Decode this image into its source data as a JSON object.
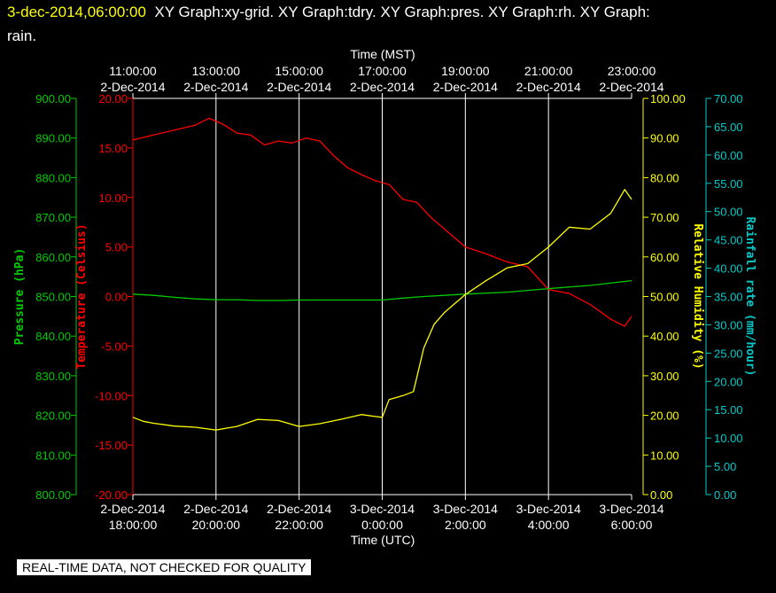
{
  "header": {
    "timestamp": "3-dec-2014,06:00:00",
    "graphs_line1": "XY Graph:xy-grid.  XY Graph:tdry.  XY Graph:pres.  XY Graph:rh.  XY Graph:",
    "graphs_line2": "rain."
  },
  "footer": {
    "quality_note": "REAL-TIME DATA, NOT CHECKED FOR QUALITY"
  },
  "colors": {
    "background": "#000000",
    "grid": "#ffffff",
    "temperature": "#ff0000",
    "pressure": "#00cc00",
    "humidity": "#ffff00",
    "rainfall": "#00cccc",
    "label": "#ffffff"
  },
  "chart_data": {
    "type": "line",
    "top_axis": {
      "title": "Time (MST)",
      "ticks": [
        {
          "time": "11:00:00",
          "date": "2-Dec-2014"
        },
        {
          "time": "13:00:00",
          "date": "2-Dec-2014"
        },
        {
          "time": "15:00:00",
          "date": "2-Dec-2014"
        },
        {
          "time": "17:00:00",
          "date": "2-Dec-2014"
        },
        {
          "time": "19:00:00",
          "date": "2-Dec-2014"
        },
        {
          "time": "21:00:00",
          "date": "2-Dec-2014"
        },
        {
          "time": "23:00:00",
          "date": "2-Dec-2014"
        }
      ]
    },
    "bottom_axis": {
      "title": "Time (UTC)",
      "ticks": [
        {
          "date": "2-Dec-2014",
          "time": "18:00:00"
        },
        {
          "date": "2-Dec-2014",
          "time": "20:00:00"
        },
        {
          "date": "2-Dec-2014",
          "time": "22:00:00"
        },
        {
          "date": "3-Dec-2014",
          "time": "0:00:00"
        },
        {
          "date": "3-Dec-2014",
          "time": "2:00:00"
        },
        {
          "date": "3-Dec-2014",
          "time": "4:00:00"
        },
        {
          "date": "3-Dec-2014",
          "time": "6:00:00"
        }
      ]
    },
    "axes": {
      "pressure": {
        "label": "Pressure (hPa)",
        "min": 800,
        "max": 900,
        "ticks": [
          "900.00",
          "890.00",
          "880.00",
          "870.00",
          "860.00",
          "850.00",
          "840.00",
          "830.00",
          "820.00",
          "810.00",
          "800.00"
        ]
      },
      "temperature": {
        "label": "Temperature (Celsius)",
        "min": -20,
        "max": 20,
        "ticks": [
          "20.00",
          "15.00",
          "10.00",
          "5.00",
          "0.00",
          "-5.00",
          "-10.00",
          "-15.00",
          "-20.00"
        ]
      },
      "humidity": {
        "label": "Relative Humidity (%)",
        "min": 0,
        "max": 100,
        "ticks": [
          "100.00",
          "90.00",
          "80.00",
          "70.00",
          "60.00",
          "50.00",
          "40.00",
          "30.00",
          "20.00",
          "10.00",
          "0.00"
        ]
      },
      "rainfall": {
        "label": "Rainfall rate (mm/hour)",
        "min": 0,
        "max": 70,
        "ticks": [
          "70.00",
          "65.00",
          "60.00",
          "55.00",
          "50.00",
          "45.00",
          "40.00",
          "35.00",
          "30.00",
          "25.00",
          "20.00",
          "15.00",
          "10.00",
          "5.00",
          "0.00"
        ]
      }
    },
    "series": [
      {
        "axis": "temperature",
        "utc": [
          "2014-12-02 18:00",
          "2014-12-02 18:30",
          "2014-12-02 19:00",
          "2014-12-02 19:30",
          "2014-12-02 19:50",
          "2014-12-02 20:10",
          "2014-12-02 20:30",
          "2014-12-02 20:50",
          "2014-12-02 21:10",
          "2014-12-02 21:30",
          "2014-12-02 21:50",
          "2014-12-02 22:10",
          "2014-12-02 22:30",
          "2014-12-02 22:50",
          "2014-12-02 23:10",
          "2014-12-02 23:30",
          "2014-12-02 23:50",
          "2014-12-03 00:10",
          "2014-12-03 00:30",
          "2014-12-03 00:50",
          "2014-12-03 01:10",
          "2014-12-03 01:30",
          "2014-12-03 02:00",
          "2014-12-03 02:30",
          "2014-12-03 03:00",
          "2014-12-03 03:30",
          "2014-12-03 04:00",
          "2014-12-03 04:30",
          "2014-12-03 05:00",
          "2014-12-03 05:30",
          "2014-12-03 05:50",
          "2014-12-03 06:00"
        ],
        "values": [
          15.8,
          16.3,
          16.8,
          17.3,
          18.0,
          17.4,
          16.5,
          16.3,
          15.3,
          15.7,
          15.5,
          16.0,
          15.7,
          14.2,
          13.0,
          12.3,
          11.7,
          11.3,
          9.8,
          9.5,
          8.0,
          6.8,
          5.0,
          4.3,
          3.5,
          3.0,
          0.7,
          0.3,
          -0.8,
          -2.3,
          -3.0,
          -2.0
        ]
      },
      {
        "axis": "pressure",
        "utc": [
          "2014-12-02 18:00",
          "2014-12-02 18:30",
          "2014-12-02 19:00",
          "2014-12-02 19:30",
          "2014-12-02 20:00",
          "2014-12-02 20:30",
          "2014-12-02 21:00",
          "2014-12-02 21:30",
          "2014-12-02 22:00",
          "2014-12-02 23:00",
          "2014-12-03 00:00",
          "2014-12-03 00:30",
          "2014-12-03 01:00",
          "2014-12-03 01:30",
          "2014-12-03 02:00",
          "2014-12-03 03:00",
          "2014-12-03 04:00",
          "2014-12-03 05:00",
          "2014-12-03 06:00"
        ],
        "values": [
          850.6,
          850.3,
          849.8,
          849.4,
          849.2,
          849.2,
          849.0,
          849.0,
          849.1,
          849.1,
          849.1,
          849.6,
          850.0,
          850.3,
          850.6,
          851.1,
          852.0,
          852.8,
          854.0
        ]
      },
      {
        "axis": "humidity",
        "utc": [
          "2014-12-02 18:00",
          "2014-12-02 18:15",
          "2014-12-02 18:30",
          "2014-12-02 19:00",
          "2014-12-02 19:30",
          "2014-12-02 20:00",
          "2014-12-02 20:30",
          "2014-12-02 21:00",
          "2014-12-02 21:30",
          "2014-12-02 22:00",
          "2014-12-02 22:30",
          "2014-12-02 23:00",
          "2014-12-02 23:30",
          "2014-12-02 23:50",
          "2014-12-03 00:00",
          "2014-12-03 00:10",
          "2014-12-03 00:30",
          "2014-12-03 00:45",
          "2014-12-03 01:00",
          "2014-12-03 01:15",
          "2014-12-03 01:30",
          "2014-12-03 02:00",
          "2014-12-03 02:30",
          "2014-12-03 03:00",
          "2014-12-03 03:30",
          "2014-12-03 04:00",
          "2014-12-03 04:30",
          "2014-12-03 05:00",
          "2014-12-03 05:30",
          "2014-12-03 05:50",
          "2014-12-03 06:00"
        ],
        "values": [
          19.5,
          18.5,
          18.0,
          17.3,
          17.0,
          16.3,
          17.2,
          19.0,
          18.7,
          17.2,
          17.9,
          19.0,
          20.2,
          19.7,
          19.5,
          24.0,
          25.0,
          26.0,
          37.0,
          43.0,
          46.0,
          50.5,
          54.0,
          57.2,
          58.3,
          62.5,
          67.5,
          67.0,
          71.0,
          77.0,
          74.5
        ]
      }
    ]
  }
}
